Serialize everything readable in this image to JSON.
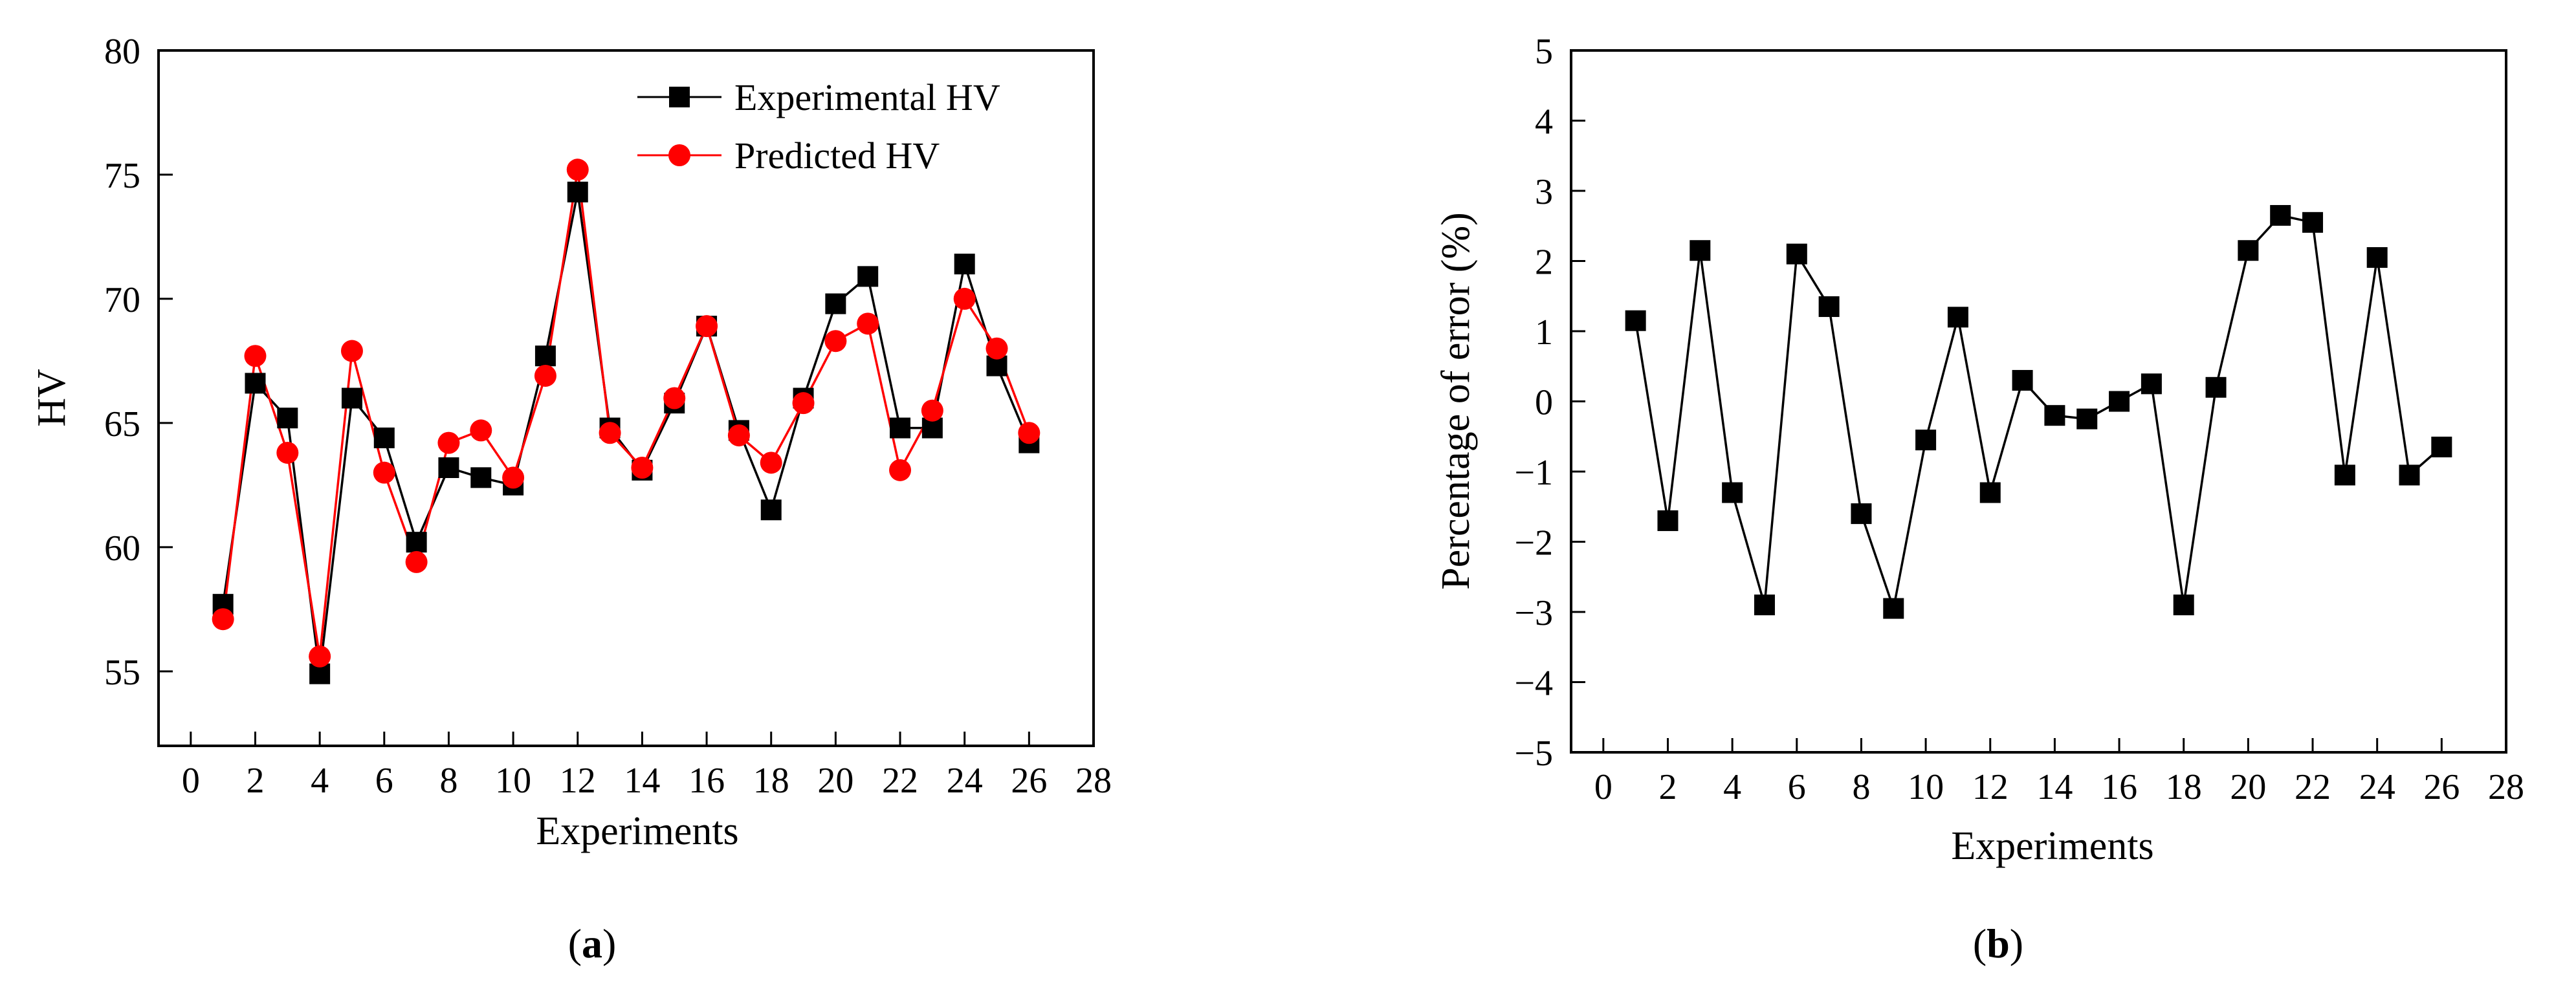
{
  "colors": {
    "experimental": "#000000",
    "predicted": "#ff0000",
    "axis": "#000000",
    "background": "#ffffff"
  },
  "chart_data": [
    {
      "type": "line",
      "xlabel": "Experiments",
      "ylabel": "HV",
      "xlim": [
        -1,
        28
      ],
      "ylim": [
        52,
        80
      ],
      "x_ticks": [
        0,
        2,
        4,
        6,
        8,
        10,
        12,
        14,
        16,
        18,
        20,
        22,
        24,
        26,
        28
      ],
      "y_ticks": [
        55,
        60,
        65,
        70,
        75,
        80
      ],
      "grid": false,
      "legend_position": "top-right",
      "x": [
        1,
        2,
        3,
        4,
        5,
        6,
        7,
        8,
        9,
        10,
        11,
        12,
        13,
        14,
        15,
        16,
        17,
        18,
        19,
        20,
        21,
        22,
        23,
        24,
        25,
        26
      ],
      "series": [
        {
          "name": "Experimental HV",
          "marker": "square",
          "color": "#000000",
          "values": [
            57.7,
            66.6,
            65.2,
            54.9,
            66.0,
            64.4,
            60.2,
            63.2,
            62.8,
            62.5,
            67.7,
            74.3,
            64.8,
            63.1,
            65.8,
            68.9,
            64.7,
            61.5,
            66.0,
            69.8,
            70.9,
            64.8,
            64.8,
            71.4,
            67.3,
            64.2
          ]
        },
        {
          "name": "Predicted HV",
          "marker": "circle",
          "color": "#ff0000",
          "values": [
            57.1,
            67.7,
            63.8,
            55.6,
            67.9,
            63.0,
            59.4,
            64.2,
            64.7,
            62.8,
            66.9,
            75.2,
            64.6,
            63.2,
            66.0,
            68.9,
            64.5,
            63.4,
            65.8,
            68.3,
            69.0,
            63.1,
            65.5,
            70.0,
            68.0,
            64.6
          ]
        }
      ],
      "caption": {
        "open": "(",
        "letter": "a",
        "close": ")"
      }
    },
    {
      "type": "line",
      "xlabel": "Experiments",
      "ylabel": "Percentage of error (%)",
      "xlim": [
        -1,
        28
      ],
      "ylim": [
        -5,
        5
      ],
      "x_ticks": [
        0,
        2,
        4,
        6,
        8,
        10,
        12,
        14,
        16,
        18,
        20,
        22,
        24,
        26,
        28
      ],
      "y_ticks": [
        -5,
        -4,
        -3,
        -2,
        -1,
        0,
        1,
        2,
        3,
        4,
        5
      ],
      "grid": false,
      "x": [
        1,
        2,
        3,
        4,
        5,
        6,
        7,
        8,
        9,
        10,
        11,
        12,
        13,
        14,
        15,
        16,
        17,
        18,
        19,
        20,
        21,
        22,
        23,
        24,
        25,
        26
      ],
      "series": [
        {
          "name": "Percentage of error",
          "marker": "square",
          "color": "#000000",
          "values": [
            1.15,
            -1.7,
            2.15,
            -1.3,
            -2.9,
            2.1,
            1.35,
            -1.6,
            -2.95,
            -0.55,
            1.2,
            -1.3,
            0.3,
            -0.2,
            -0.25,
            0.0,
            0.25,
            -2.9,
            0.2,
            2.15,
            2.65,
            2.55,
            -1.05,
            2.05,
            -1.05,
            -0.65
          ]
        }
      ],
      "caption": {
        "open": "(",
        "letter": "b",
        "close": ")"
      }
    }
  ]
}
